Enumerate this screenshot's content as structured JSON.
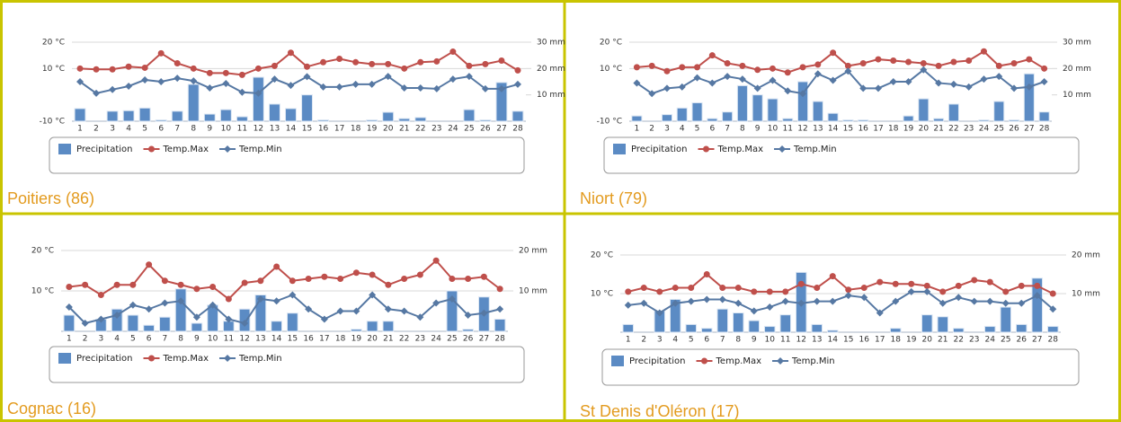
{
  "panels": [
    {
      "caption": "Poitiers (86)",
      "chart_data": {
        "type": "combo",
        "categories": [
          "1",
          "2",
          "3",
          "4",
          "5",
          "6",
          "7",
          "8",
          "9",
          "10",
          "11",
          "12",
          "13",
          "14",
          "15",
          "16",
          "17",
          "18",
          "19",
          "20",
          "21",
          "22",
          "23",
          "24",
          "25",
          "26",
          "27",
          "28"
        ],
        "ylim": [
          -10,
          20
        ],
        "yticks": [
          {
            "value": -10,
            "label": "-10 °C"
          },
          {
            "value": 10,
            "label": "10 °C"
          },
          {
            "value": 20,
            "label": "20 °C"
          }
        ],
        "y2lim": [
          0,
          30
        ],
        "y2ticks": [
          {
            "value": 10,
            "label": "10 mm"
          },
          {
            "value": 20,
            "label": "20 mm"
          },
          {
            "value": 30,
            "label": "30 mm"
          }
        ],
        "series": [
          {
            "name": "Precipitation",
            "type": "bar",
            "axis": "y2",
            "color": "#5b8bc4",
            "values": [
              4.8,
              0,
              3.8,
              4,
              5,
              0.5,
              3.8,
              14,
              2.7,
              4.4,
              1.7,
              16.7,
              6.5,
              4.8,
              10,
              0.5,
              0,
              0,
              0.5,
              3.4,
              1,
              1.4,
              0,
              0,
              4.4,
              0.5,
              14.7,
              3.8
            ]
          },
          {
            "name": "Temp.Max",
            "type": "line",
            "marker": "circle",
            "color": "#bf4f4b",
            "values": [
              10,
              9.7,
              9.7,
              10.7,
              10.3,
              15.8,
              12,
              10,
              8.3,
              8.3,
              7.6,
              10,
              11,
              16,
              10.7,
              12.4,
              13.7,
              12.4,
              11.7,
              11.7,
              10,
              12.4,
              12.7,
              16.4,
              11,
              11.7,
              13,
              9.3
            ]
          },
          {
            "name": "Temp.Min",
            "type": "line",
            "marker": "diamond",
            "color": "#5678a3",
            "values": [
              5,
              0.6,
              2,
              3.3,
              5.7,
              5,
              6.3,
              5.3,
              2.6,
              4.3,
              1,
              0.6,
              6,
              3.6,
              6.9,
              3,
              3,
              4,
              4,
              7,
              2.6,
              2.6,
              2.3,
              6,
              7,
              2.3,
              2.3,
              4
            ]
          }
        ]
      }
    },
    {
      "caption": "Niort (79)",
      "chart_data": {
        "type": "combo",
        "categories": [
          "1",
          "2",
          "3",
          "4",
          "5",
          "6",
          "7",
          "8",
          "9",
          "10",
          "11",
          "12",
          "13",
          "14",
          "15",
          "16",
          "17",
          "18",
          "19",
          "20",
          "21",
          "22",
          "23",
          "24",
          "25",
          "26",
          "27",
          "28"
        ],
        "ylim": [
          -10,
          20
        ],
        "yticks": [
          {
            "value": -10,
            "label": "-10 °C"
          },
          {
            "value": 10,
            "label": "10 °C"
          },
          {
            "value": 20,
            "label": "20 °C"
          }
        ],
        "y2lim": [
          0,
          30
        ],
        "y2ticks": [
          {
            "value": 10,
            "label": "10 mm"
          },
          {
            "value": 20,
            "label": "20 mm"
          },
          {
            "value": 30,
            "label": "30 mm"
          }
        ],
        "series": [
          {
            "name": "Precipitation",
            "type": "bar",
            "axis": "y2",
            "color": "#5b8bc4",
            "values": [
              2,
              0,
              2.5,
              5,
              7,
              1,
              3.5,
              13.5,
              10,
              8.5,
              1,
              15,
              7.5,
              3,
              0.5,
              0.5,
              0,
              0,
              2,
              8.5,
              1,
              6.5,
              0,
              0.5,
              7.5,
              0.5,
              18,
              3.5
            ]
          },
          {
            "name": "Temp.Max",
            "type": "line",
            "marker": "circle",
            "color": "#bf4f4b",
            "values": [
              10.5,
              11,
              9,
              10.5,
              10.5,
              15,
              12,
              11,
              9.5,
              10,
              8.5,
              10.5,
              11.5,
              16,
              11,
              12,
              13.5,
              13,
              12.5,
              12,
              11,
              12.5,
              13,
              16.5,
              11,
              12,
              13.5,
              10
            ]
          },
          {
            "name": "Temp.Min",
            "type": "line",
            "marker": "diamond",
            "color": "#5678a3",
            "values": [
              4.5,
              0.5,
              2.5,
              3,
              6.5,
              4.5,
              7,
              6,
              2.5,
              5.5,
              1.5,
              0.5,
              8,
              5.5,
              9,
              2.5,
              2.5,
              5,
              5,
              9.5,
              4.5,
              4,
              3,
              6,
              7,
              2.5,
              3,
              5
            ]
          }
        ]
      }
    },
    {
      "caption": "Cognac (16)",
      "chart_data": {
        "type": "combo",
        "categories": [
          "1",
          "2",
          "3",
          "4",
          "5",
          "6",
          "7",
          "8",
          "9",
          "10",
          "11",
          "12",
          "13",
          "14",
          "15",
          "16",
          "17",
          "18",
          "19",
          "20",
          "21",
          "22",
          "23",
          "24",
          "25",
          "26",
          "27",
          "28"
        ],
        "ylim": [
          0,
          20
        ],
        "yticks": [
          {
            "value": 10,
            "label": "10 °C"
          },
          {
            "value": 20,
            "label": "20 °C"
          }
        ],
        "y2lim": [
          0,
          20
        ],
        "y2ticks": [
          {
            "value": 10,
            "label": "10 mm"
          },
          {
            "value": 20,
            "label": "20 mm"
          }
        ],
        "series": [
          {
            "name": "Precipitation",
            "type": "bar",
            "axis": "y2",
            "color": "#5b8bc4",
            "values": [
              4,
              0,
              3,
              5.5,
              4,
              1.5,
              3.5,
              10.5,
              2,
              6.5,
              2.5,
              5.5,
              9,
              2.5,
              4.5,
              0,
              0,
              0,
              0.5,
              2.5,
              2.5,
              0,
              0,
              0,
              10,
              0.5,
              8.5,
              3
            ]
          },
          {
            "name": "Temp.Max",
            "type": "line",
            "marker": "circle",
            "color": "#bf4f4b",
            "values": [
              11,
              11.5,
              9,
              11.5,
              11.5,
              16.5,
              12.5,
              11.5,
              10.5,
              11,
              8,
              12,
              12.5,
              16,
              12.5,
              13,
              13.5,
              13,
              14.5,
              14,
              11.5,
              13,
              14,
              17.5,
              13,
              13,
              13.5,
              10.5
            ]
          },
          {
            "name": "Temp.Min",
            "type": "line",
            "marker": "diamond",
            "color": "#5678a3",
            "values": [
              6,
              2,
              3,
              4,
              6.5,
              5.5,
              7,
              7.5,
              3.5,
              6.5,
              3,
              2,
              8,
              7.5,
              9,
              5.5,
              3,
              5,
              5,
              9,
              5.5,
              5,
              3.5,
              7,
              8,
              4,
              4.5,
              5.5
            ]
          }
        ]
      }
    },
    {
      "caption": "St Denis d'Oléron (17)",
      "chart_data": {
        "type": "combo",
        "categories": [
          "1",
          "2",
          "3",
          "4",
          "5",
          "6",
          "7",
          "8",
          "9",
          "10",
          "11",
          "12",
          "13",
          "14",
          "15",
          "16",
          "17",
          "18",
          "19",
          "20",
          "21",
          "22",
          "23",
          "24",
          "25",
          "26",
          "27",
          "28"
        ],
        "ylim": [
          0,
          20
        ],
        "yticks": [
          {
            "value": 10,
            "label": "10 °C"
          },
          {
            "value": 20,
            "label": "20 °C"
          }
        ],
        "y2lim": [
          0,
          20
        ],
        "y2ticks": [
          {
            "value": 10,
            "label": "10 mm"
          },
          {
            "value": 20,
            "label": "20 mm"
          }
        ],
        "series": [
          {
            "name": "Precipitation",
            "type": "bar",
            "axis": "y2",
            "color": "#5b8bc4",
            "values": [
              2,
              0,
              5.5,
              8.5,
              2,
              1,
              6,
              5,
              3,
              1.5,
              4.5,
              15.5,
              2,
              0.5,
              0,
              0,
              0,
              1,
              0,
              4.5,
              4,
              1,
              0,
              1.5,
              6.5,
              2,
              14,
              1.5
            ]
          },
          {
            "name": "Temp.Max",
            "type": "line",
            "marker": "circle",
            "color": "#bf4f4b",
            "values": [
              10.5,
              11.5,
              10.5,
              11.5,
              11.5,
              15,
              11.5,
              11.5,
              10.5,
              10.5,
              10.5,
              12.5,
              11.5,
              14.5,
              11,
              11.5,
              13,
              12.5,
              12.5,
              12,
              10.5,
              12,
              13.5,
              13,
              10.5,
              12,
              12,
              10
            ]
          },
          {
            "name": "Temp.Min",
            "type": "line",
            "marker": "diamond",
            "color": "#5678a3",
            "values": [
              7,
              7.5,
              5,
              7.5,
              8,
              8.5,
              8.5,
              7.5,
              5.5,
              6.5,
              8,
              7.5,
              8,
              8,
              9.5,
              9,
              5,
              8,
              10.5,
              10.5,
              7.5,
              9,
              8,
              8,
              7.5,
              7.5,
              9.5,
              6
            ]
          }
        ]
      }
    }
  ]
}
